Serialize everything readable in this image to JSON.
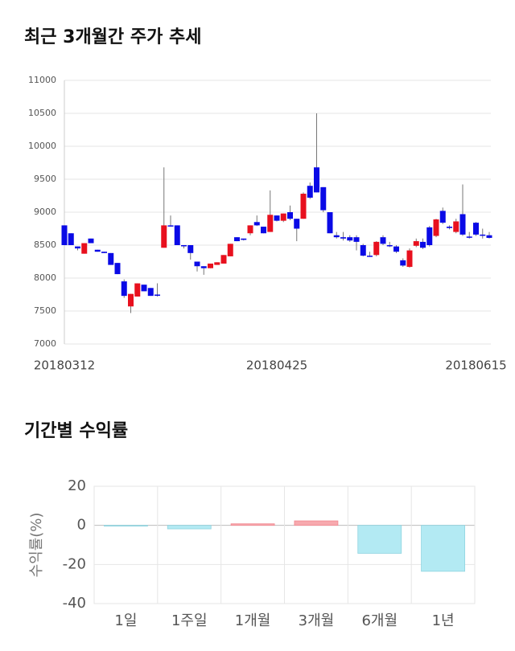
{
  "chart_data": [
    {
      "type": "candlestick",
      "title": "최근 3개월간 주가 추세",
      "categories": [
        "20180312",
        null,
        null,
        null,
        null,
        null,
        null,
        null,
        null,
        null,
        null,
        null,
        null,
        null,
        null,
        null,
        null,
        null,
        null,
        null,
        null,
        null,
        null,
        null,
        null,
        null,
        null,
        null,
        null,
        null,
        null,
        null,
        "20180425",
        null,
        null,
        null,
        null,
        null,
        null,
        null,
        null,
        null,
        null,
        null,
        null,
        null,
        null,
        null,
        null,
        null,
        null,
        null,
        null,
        null,
        null,
        null,
        null,
        null,
        null,
        null,
        null,
        null,
        "20180615",
        null,
        null
      ],
      "open": [
        8800,
        8680,
        8480,
        8370,
        8600,
        8430,
        8400,
        8380,
        8230,
        7950,
        7570,
        7720,
        7900,
        7850,
        7750,
        8460,
        8800,
        8800,
        8500,
        8500,
        8250,
        8180,
        8150,
        8200,
        8220,
        8330,
        8620,
        8600,
        8680,
        8850,
        8780,
        8700,
        8950,
        8870,
        9000,
        8900,
        8900,
        9400,
        9680,
        9380,
        9000,
        8650,
        8620,
        8620,
        8620,
        8500,
        8340,
        8350,
        8620,
        8500,
        8480,
        8270,
        8170,
        8490,
        8550,
        8770,
        8640,
        9020,
        8780,
        8700,
        8970,
        8630,
        8840,
        8660,
        8650
      ],
      "high": [
        8800,
        8680,
        8480,
        8530,
        8600,
        8430,
        8400,
        8380,
        8230,
        7980,
        7760,
        7920,
        7900,
        7850,
        7920,
        9680,
        8950,
        8800,
        8500,
        8500,
        8250,
        8180,
        8220,
        8240,
        8350,
        8520,
        8620,
        8600,
        8800,
        8950,
        8780,
        9330,
        8950,
        8980,
        9100,
        8900,
        9300,
        9450,
        10500,
        9380,
        9000,
        8700,
        8700,
        8650,
        8650,
        8520,
        8400,
        8560,
        8650,
        8550,
        8500,
        8300,
        8450,
        8600,
        8600,
        8790,
        8900,
        9070,
        8800,
        8900,
        9420,
        8700,
        8850,
        8750,
        8700
      ],
      "low": [
        8500,
        8500,
        8420,
        8370,
        8530,
        8400,
        8380,
        8200,
        8060,
        7700,
        7470,
        7720,
        7800,
        7730,
        7720,
        8460,
        8790,
        8500,
        8450,
        8280,
        8100,
        8050,
        8150,
        8200,
        8220,
        8330,
        8560,
        8570,
        8650,
        8790,
        8680,
        8700,
        8860,
        8850,
        8880,
        8560,
        8900,
        9200,
        9300,
        9000,
        8680,
        8600,
        8570,
        8550,
        8420,
        8330,
        8320,
        8330,
        8500,
        8470,
        8380,
        8170,
        8160,
        8470,
        8440,
        8480,
        8620,
        8820,
        8740,
        8680,
        8640,
        8600,
        8640,
        8600,
        8600
      ],
      "close": [
        8500,
        8500,
        8450,
        8530,
        8530,
        8400,
        8380,
        8200,
        8060,
        7730,
        7760,
        7920,
        7800,
        7730,
        7740,
        8800,
        8790,
        8500,
        8490,
        8380,
        8180,
        8150,
        8220,
        8240,
        8350,
        8520,
        8560,
        8580,
        8800,
        8800,
        8680,
        8960,
        8870,
        8980,
        8900,
        8750,
        9280,
        9220,
        9300,
        9030,
        8680,
        8620,
        8600,
        8570,
        8550,
        8340,
        8330,
        8550,
        8520,
        8490,
        8400,
        8190,
        8420,
        8560,
        8460,
        8500,
        8890,
        8840,
        8760,
        8860,
        8660,
        8620,
        8660,
        8650,
        8610
      ],
      "up_color": "#e8101e",
      "down_color": "#0a0ae6",
      "ylim": [
        7000,
        11000
      ],
      "yticks": [
        7000,
        7500,
        8000,
        8500,
        9000,
        9500,
        10000,
        10500,
        11000
      ],
      "grid": true
    },
    {
      "type": "bar",
      "title": "기간별 수익률",
      "y_label": "수익률(%)",
      "categories": [
        "1일",
        "1주일",
        "1개월",
        "3개월",
        "6개월",
        "1년"
      ],
      "values": [
        -0.3,
        -1.8,
        0.8,
        2.3,
        -14.3,
        -23.5
      ],
      "positive_color": "#f7a9ae",
      "negative_color": "#b3eaf3",
      "ylim": [
        -40,
        20
      ],
      "yticks": [
        -40,
        -20,
        0,
        20
      ],
      "grid": true
    }
  ]
}
